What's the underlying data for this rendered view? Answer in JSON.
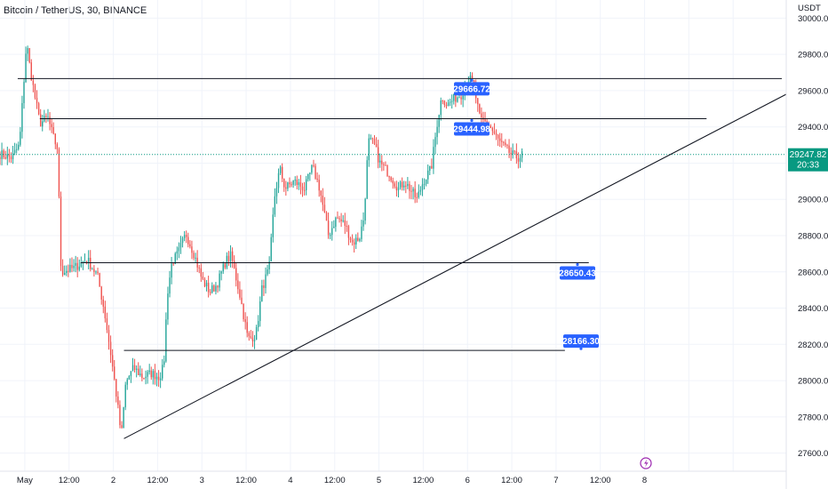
{
  "header": {
    "title": "Bitcoin / TetherUS, 30, BINANCE",
    "currency": "USDT"
  },
  "colors": {
    "up": "#26a69a",
    "down": "#ef5350",
    "accent": "#2962ff",
    "last_price": "#089981",
    "line": "#131722",
    "flash": "#9c27b0"
  },
  "icons": {
    "bottom_marker": "lightning-icon"
  },
  "chart_data": {
    "type": "candlestick",
    "ylim": [
      27500,
      30100
    ],
    "y_ticks": [
      30000,
      29800,
      29600,
      29400,
      29200,
      29000,
      28800,
      28600,
      28400,
      28200,
      28000,
      27800,
      27600
    ],
    "y_tick_labels": [
      "30000.00",
      "29800.00",
      "29600.00",
      "29400.00",
      "29200.00",
      "29000.00",
      "28800.00",
      "28600.00",
      "28400.00",
      "28200.00",
      "28000.00",
      "27800.00",
      "27600.00"
    ],
    "x_range": [
      -0.28,
      8.6
    ],
    "x_ticks": [
      0,
      0.5,
      1,
      1.5,
      2,
      2.5,
      3,
      3.5,
      4,
      4.5,
      5,
      5.5,
      6,
      6.5,
      7,
      7.5,
      8
    ],
    "x_tick_labels": [
      "May",
      "12:00",
      "2",
      "12:00",
      "3",
      "12:00",
      "4",
      "12:00",
      "5",
      "12:00",
      "6",
      "12:00",
      "7",
      "12:00",
      "8"
    ],
    "anchors": [
      [
        -0.28,
        29250
      ],
      [
        -0.15,
        29230
      ],
      [
        -0.06,
        29300
      ],
      [
        0.02,
        29870
      ],
      [
        0.06,
        29720
      ],
      [
        0.12,
        29550
      ],
      [
        0.17,
        29420
      ],
      [
        0.26,
        29450
      ],
      [
        0.33,
        29330
      ],
      [
        0.37,
        29280
      ],
      [
        0.41,
        28600
      ],
      [
        0.55,
        28620
      ],
      [
        0.7,
        28670
      ],
      [
        0.82,
        28580
      ],
      [
        0.9,
        28380
      ],
      [
        0.97,
        28150
      ],
      [
        1.04,
        27900
      ],
      [
        1.09,
        27690
      ],
      [
        1.14,
        27990
      ],
      [
        1.23,
        28070
      ],
      [
        1.33,
        28020
      ],
      [
        1.43,
        28040
      ],
      [
        1.52,
        28020
      ],
      [
        1.57,
        28080
      ],
      [
        1.61,
        28480
      ],
      [
        1.66,
        28650
      ],
      [
        1.73,
        28700
      ],
      [
        1.82,
        28810
      ],
      [
        1.91,
        28700
      ],
      [
        2.0,
        28560
      ],
      [
        2.09,
        28490
      ],
      [
        2.17,
        28530
      ],
      [
        2.27,
        28660
      ],
      [
        2.33,
        28690
      ],
      [
        2.43,
        28470
      ],
      [
        2.52,
        28230
      ],
      [
        2.61,
        28250
      ],
      [
        2.68,
        28510
      ],
      [
        2.76,
        28620
      ],
      [
        2.82,
        29010
      ],
      [
        2.88,
        29170
      ],
      [
        2.94,
        29060
      ],
      [
        3.04,
        29100
      ],
      [
        3.16,
        29060
      ],
      [
        3.25,
        29180
      ],
      [
        3.33,
        29060
      ],
      [
        3.43,
        28800
      ],
      [
        3.52,
        28900
      ],
      [
        3.62,
        28860
      ],
      [
        3.7,
        28760
      ],
      [
        3.78,
        28790
      ],
      [
        3.83,
        28900
      ],
      [
        3.88,
        29320
      ],
      [
        3.94,
        29310
      ],
      [
        4.01,
        29200
      ],
      [
        4.12,
        29140
      ],
      [
        4.22,
        29060
      ],
      [
        4.29,
        29100
      ],
      [
        4.36,
        29050
      ],
      [
        4.43,
        29000
      ],
      [
        4.5,
        29100
      ],
      [
        4.59,
        29170
      ],
      [
        4.66,
        29430
      ],
      [
        4.71,
        29570
      ],
      [
        4.77,
        29520
      ],
      [
        4.86,
        29560
      ],
      [
        4.93,
        29580
      ],
      [
        5.02,
        29670
      ],
      [
        5.07,
        29630
      ],
      [
        5.14,
        29440
      ],
      [
        5.23,
        29420
      ],
      [
        5.34,
        29330
      ],
      [
        5.41,
        29290
      ],
      [
        5.49,
        29250
      ],
      [
        5.57,
        29230
      ],
      [
        5.63,
        29248
      ]
    ],
    "levels": [
      {
        "price": 29666.72,
        "label": "29666.72",
        "x_from": -0.08,
        "x_to": 8.55
      },
      {
        "price": 29444.98,
        "label": "29444.98",
        "x_from": 0.17,
        "x_to": 7.7
      },
      {
        "price": 28650.43,
        "label": "28650.43",
        "x_from": 0.63,
        "x_to": 6.37
      },
      {
        "price": 28166.3,
        "label": "28166.30",
        "x_from": 1.12,
        "x_to": 6.1
      }
    ],
    "trendline": {
      "from": [
        1.12,
        27680
      ],
      "to": [
        8.6,
        29580
      ]
    },
    "last_price": {
      "value": "29247.82",
      "countdown": "20:33",
      "price": 29247.82
    }
  }
}
